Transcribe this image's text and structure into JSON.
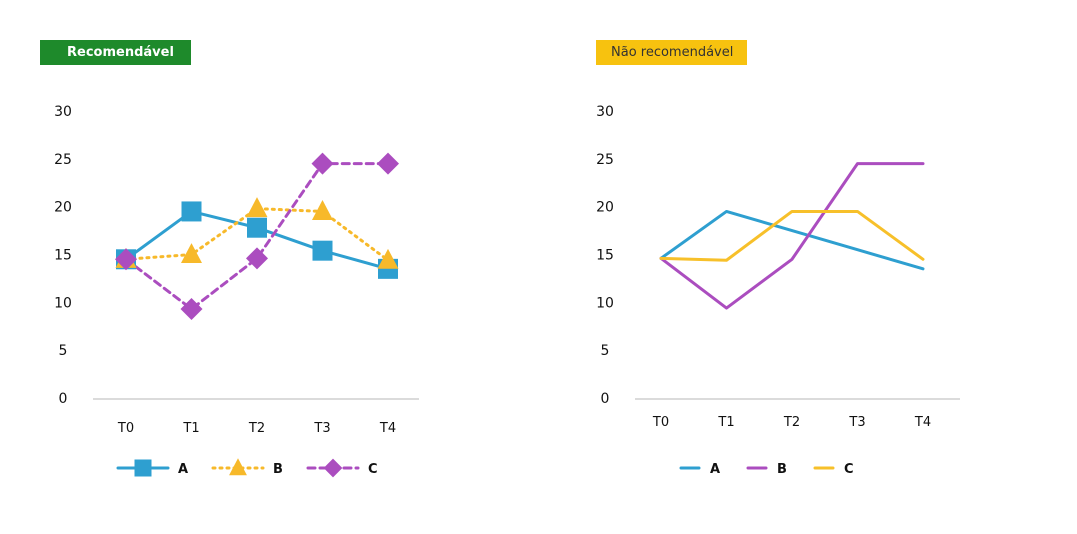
{
  "chart_data": [
    {
      "type": "line",
      "title": "Recomendável",
      "categories": [
        "T0",
        "T1",
        "T2",
        "T3",
        "T4"
      ],
      "ylim": [
        0,
        30
      ],
      "yticks": [
        0,
        5,
        10,
        15,
        20,
        25,
        30
      ],
      "grid": false,
      "legend": "bottom",
      "markers": true,
      "series": [
        {
          "name": "A",
          "values": [
            14.5,
            19.5,
            17.8,
            15.4,
            13.5
          ],
          "color": "#2e9fd0",
          "dash": "solid",
          "marker": "square"
        },
        {
          "name": "B",
          "values": [
            14.5,
            15.0,
            19.8,
            19.5,
            14.4
          ],
          "color": "#f7b92a",
          "dash": "dotted",
          "marker": "triangle"
        },
        {
          "name": "C",
          "values": [
            14.5,
            9.3,
            14.6,
            24.5,
            24.5
          ],
          "color": "#ab4dbf",
          "dash": "dashed",
          "marker": "diamond"
        }
      ]
    },
    {
      "type": "line",
      "title": "Não recomendável",
      "categories": [
        "T0",
        "T1",
        "T2",
        "T3",
        "T4"
      ],
      "ylim": [
        0,
        30
      ],
      "yticks": [
        0,
        5,
        10,
        15,
        20,
        25,
        30
      ],
      "grid": false,
      "legend": "bottom",
      "markers": false,
      "series": [
        {
          "name": "A",
          "values": [
            14.6,
            19.5,
            17.5,
            15.5,
            13.5
          ],
          "color": "#2e9fd0",
          "dash": "solid"
        },
        {
          "name": "B",
          "values": [
            14.6,
            9.4,
            14.5,
            24.5,
            24.5
          ],
          "color": "#ab4dbf",
          "dash": "solid"
        },
        {
          "name": "C",
          "values": [
            14.6,
            14.4,
            19.5,
            19.5,
            14.5
          ],
          "color": "#f7c02a",
          "dash": "solid"
        }
      ]
    }
  ]
}
